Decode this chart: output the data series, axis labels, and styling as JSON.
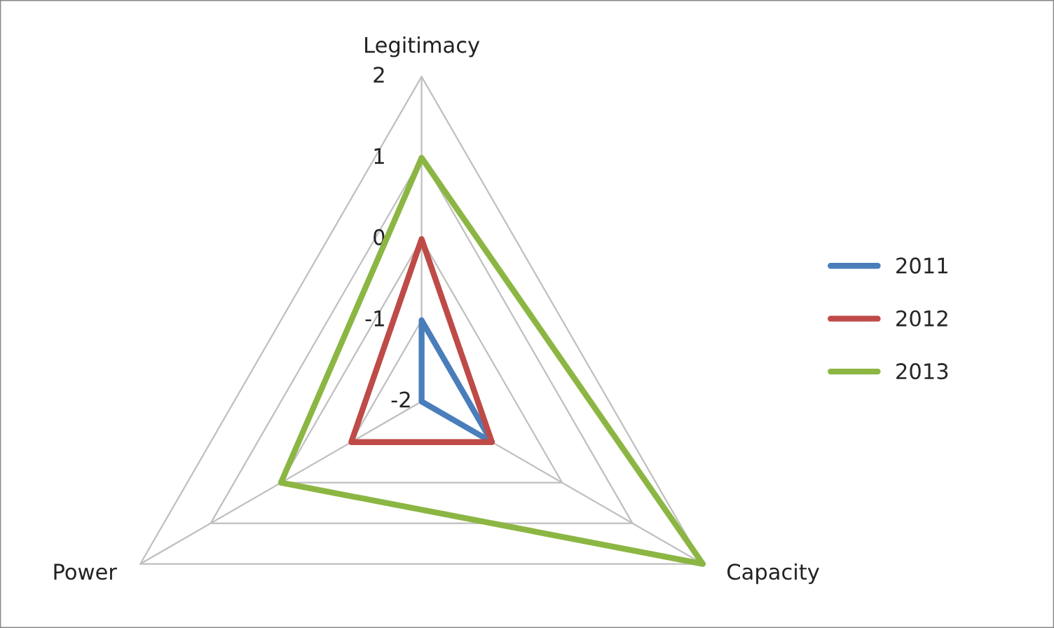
{
  "chart_data": {
    "type": "radar",
    "categories": [
      "Legitimacy",
      "Capacity",
      "Power"
    ],
    "ylim": [
      -2,
      2
    ],
    "yticks": [
      -2,
      -1,
      0,
      1,
      2
    ],
    "grid": true,
    "legend": "right",
    "marker": "none",
    "line_style": "solid",
    "series": [
      {
        "name": "2011",
        "color": "#4a7ebb",
        "values": [
          -1,
          -1,
          -2
        ]
      },
      {
        "name": "2012",
        "color": "#be4b48",
        "values": [
          0,
          -1,
          -1
        ]
      },
      {
        "name": "2013",
        "color": "#8cb643",
        "values": [
          1,
          2,
          0
        ]
      }
    ]
  }
}
